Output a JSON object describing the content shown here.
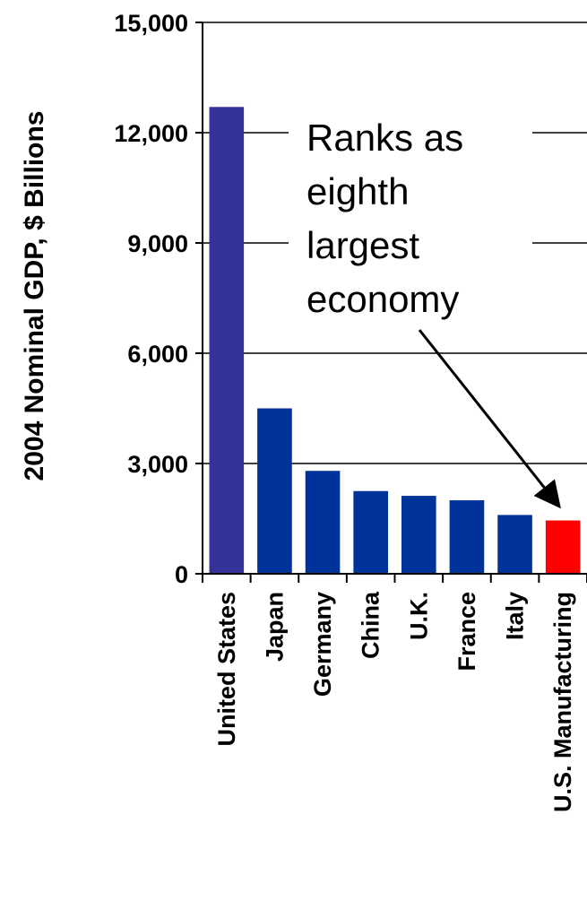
{
  "chart_data": {
    "type": "bar",
    "title": "",
    "xlabel": "",
    "ylabel": "2004 Nominal GDP, $ Billions",
    "ylim": [
      0,
      15000
    ],
    "yticks": [
      0,
      3000,
      6000,
      9000,
      12000,
      15000
    ],
    "ytick_labels": [
      "0",
      "3,000",
      "6,000",
      "9,000",
      "12,000",
      "15,000"
    ],
    "grid": true,
    "categories": [
      "United States",
      "Japan",
      "Germany",
      "China",
      "U.K.",
      "France",
      "Italy",
      "U.S. Manufacturing"
    ],
    "values": [
      12700,
      4500,
      2800,
      2250,
      2120,
      2000,
      1600,
      1450
    ],
    "colors": [
      "#333399",
      "#003399",
      "#003399",
      "#003399",
      "#003399",
      "#003399",
      "#003399",
      "#ff0000"
    ],
    "annotation": {
      "lines": [
        "Ranks as",
        "eighth",
        "largest",
        "economy"
      ],
      "arrow_target": "U.S. Manufacturing"
    }
  }
}
